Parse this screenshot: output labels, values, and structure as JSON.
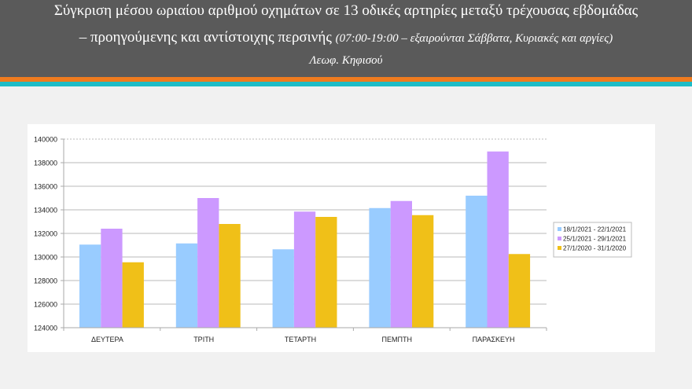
{
  "header": {
    "line1": "Σύγκριση μέσου ωριαίου αριθμού οχημάτων σε 13 οδικές αρτηρίες μεταξύ τρέχουσας εβδομάδας",
    "line2_main": "– προηγούμενης και αντίστοιχης περσινής ",
    "line2_sub": "(07:00-19:00 – εξαιρούνται Σάββατα, Κυριακές και αργίες)",
    "line3": "Λεωφ. Κηφισού",
    "stripe_colors": [
      "#ef7b1f",
      "#1ebcc6"
    ]
  },
  "chart_data": {
    "type": "bar",
    "title": "Λεωφ. Κηφισού",
    "xlabel": "",
    "ylabel": "",
    "categories": [
      "ΔΕΥΤΕΡΑ",
      "ΤΡΙΤΗ",
      "ΤΕΤΑΡΤΗ",
      "ΠΕΜΠΤΗ",
      "ΠΑΡΑΣΚΕΥΗ"
    ],
    "series": [
      {
        "name": "18/1/2021 - 22/1/2021",
        "color": "#99ccff",
        "values": [
          131050,
          131150,
          130650,
          134150,
          135200
        ]
      },
      {
        "name": "25/1/2021 - 29/1/2021",
        "color": "#cc99ff",
        "values": [
          132400,
          135000,
          133850,
          134750,
          138950
        ]
      },
      {
        "name": "27/1/2020 - 31/1/2020",
        "color": "#f0c018",
        "values": [
          129550,
          132800,
          133400,
          133550,
          130250
        ]
      }
    ],
    "ylim": [
      124000,
      140000
    ],
    "yticks": [
      124000,
      126000,
      128000,
      130000,
      132000,
      134000,
      136000,
      138000,
      140000
    ],
    "grid": true,
    "legend_position": "right"
  }
}
